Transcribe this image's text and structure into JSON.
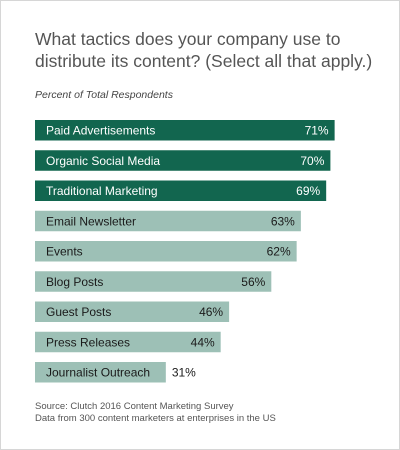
{
  "title": "What tactics does your company use to distribute its content? (Select all that apply.)",
  "subtitle": "Percent of Total Respondents",
  "source": {
    "line1": "Source: Clutch 2016 Content Marketing Survey",
    "line2": "Data from 300 content marketers at enterprises in the US"
  },
  "colors": {
    "highlight": "#12664f",
    "normal": "#9dc0b6",
    "highlight_text": "#ffffff",
    "normal_text": "#1a1a1a"
  },
  "chart_data": {
    "type": "bar",
    "orientation": "horizontal",
    "categories": [
      "Paid Advertisements",
      "Organic Social Media",
      "Traditional Marketing",
      "Email Newsletter",
      "Events",
      "Blog Posts",
      "Guest Posts",
      "Press Releases",
      "Journalist Outreach"
    ],
    "values": [
      71,
      70,
      69,
      63,
      62,
      56,
      46,
      44,
      31
    ],
    "value_labels": [
      "71%",
      "70%",
      "69%",
      "63%",
      "62%",
      "56%",
      "46%",
      "44%",
      "31%"
    ],
    "highlighted": [
      true,
      true,
      true,
      false,
      false,
      false,
      false,
      false,
      false
    ],
    "xlim": [
      0,
      100
    ],
    "grid": false,
    "legend": "none"
  }
}
